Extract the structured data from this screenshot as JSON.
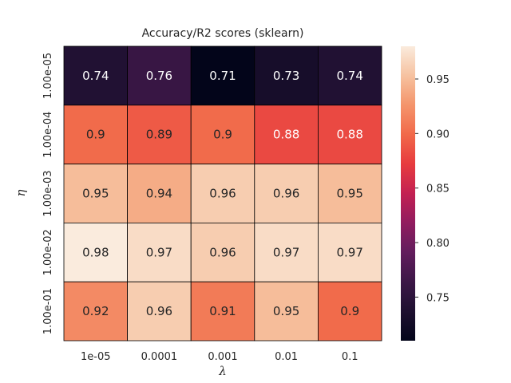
{
  "chart_data": {
    "type": "heatmap",
    "title": "Accuracy/R2 scores (sklearn)",
    "xlabel": "λ",
    "ylabel": "η",
    "x_categories": [
      "1e-05",
      "0.0001",
      "0.001",
      "0.01",
      "0.1"
    ],
    "y_categories": [
      "1.00e-05",
      "1.00e-04",
      "1.00e-03",
      "1.00e-02",
      "1.00e-01"
    ],
    "values": [
      [
        0.74,
        0.76,
        0.71,
        0.73,
        0.74
      ],
      [
        0.9,
        0.89,
        0.9,
        0.88,
        0.88
      ],
      [
        0.95,
        0.94,
        0.96,
        0.96,
        0.95
      ],
      [
        0.98,
        0.97,
        0.96,
        0.97,
        0.97
      ],
      [
        0.92,
        0.96,
        0.91,
        0.95,
        0.9
      ]
    ],
    "cell_labels": [
      [
        "0.74",
        "0.76",
        "0.71",
        "0.73",
        "0.74"
      ],
      [
        "0.9",
        "0.89",
        "0.9",
        "0.88",
        "0.88"
      ],
      [
        "0.95",
        "0.94",
        "0.96",
        "0.96",
        "0.95"
      ],
      [
        "0.98",
        "0.97",
        "0.96",
        "0.97",
        "0.97"
      ],
      [
        "0.92",
        "0.96",
        "0.91",
        "0.95",
        "0.9"
      ]
    ],
    "colorbar": {
      "vmin": 0.71,
      "vmax": 0.98,
      "ticks": [
        "0.75",
        "0.80",
        "0.85",
        "0.90",
        "0.95"
      ],
      "colormap": "rocket"
    },
    "grid": false,
    "legend": "colorbar-right"
  }
}
